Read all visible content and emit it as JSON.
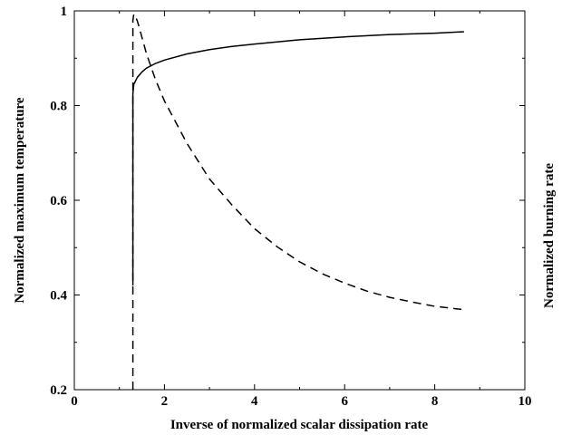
{
  "chart_data": {
    "type": "line",
    "title": "",
    "xlabel": "Inverse of normalized scalar dissipation rate",
    "ylabel": "Normalized maximum temperature",
    "y2label": "Normalized burning rate",
    "xlim": [
      0,
      10
    ],
    "ylim": [
      0.2,
      1.0
    ],
    "xticks": [
      0,
      2,
      4,
      6,
      8,
      10
    ],
    "yticks": [
      0.2,
      0.4,
      0.6,
      0.8,
      1.0
    ],
    "xtick_labels": [
      "0",
      "2",
      "4",
      "6",
      "8",
      "10"
    ],
    "ytick_labels": [
      "0.2",
      "0.4",
      "0.6",
      "0.8",
      "1"
    ],
    "grid": false,
    "legend": "none",
    "series": [
      {
        "style": "solid",
        "color": "#000000",
        "x": [
          1.3,
          1.3,
          1.32,
          1.4,
          1.5,
          1.6,
          1.8,
          2.0,
          2.5,
          3.0,
          3.5,
          4.0,
          5.0,
          6.0,
          7.0,
          8.0,
          8.65
        ],
        "y": [
          0.42,
          0.825,
          0.845,
          0.86,
          0.871,
          0.879,
          0.889,
          0.896,
          0.909,
          0.918,
          0.925,
          0.93,
          0.939,
          0.945,
          0.95,
          0.953,
          0.956
        ]
      },
      {
        "style": "dashed",
        "color": "#000000",
        "x": [
          1.3,
          1.3,
          1.32,
          1.35,
          1.4,
          1.45,
          1.5,
          1.6,
          1.8,
          2.0,
          2.5,
          3.0,
          3.5,
          4.0,
          4.5,
          5.0,
          5.5,
          6.0,
          6.5,
          7.0,
          7.5,
          8.0,
          8.65
        ],
        "y": [
          0.2,
          0.98,
          0.993,
          0.99,
          0.978,
          0.962,
          0.944,
          0.91,
          0.855,
          0.81,
          0.72,
          0.645,
          0.59,
          0.54,
          0.502,
          0.47,
          0.445,
          0.425,
          0.408,
          0.395,
          0.385,
          0.376,
          0.369
        ]
      }
    ]
  }
}
